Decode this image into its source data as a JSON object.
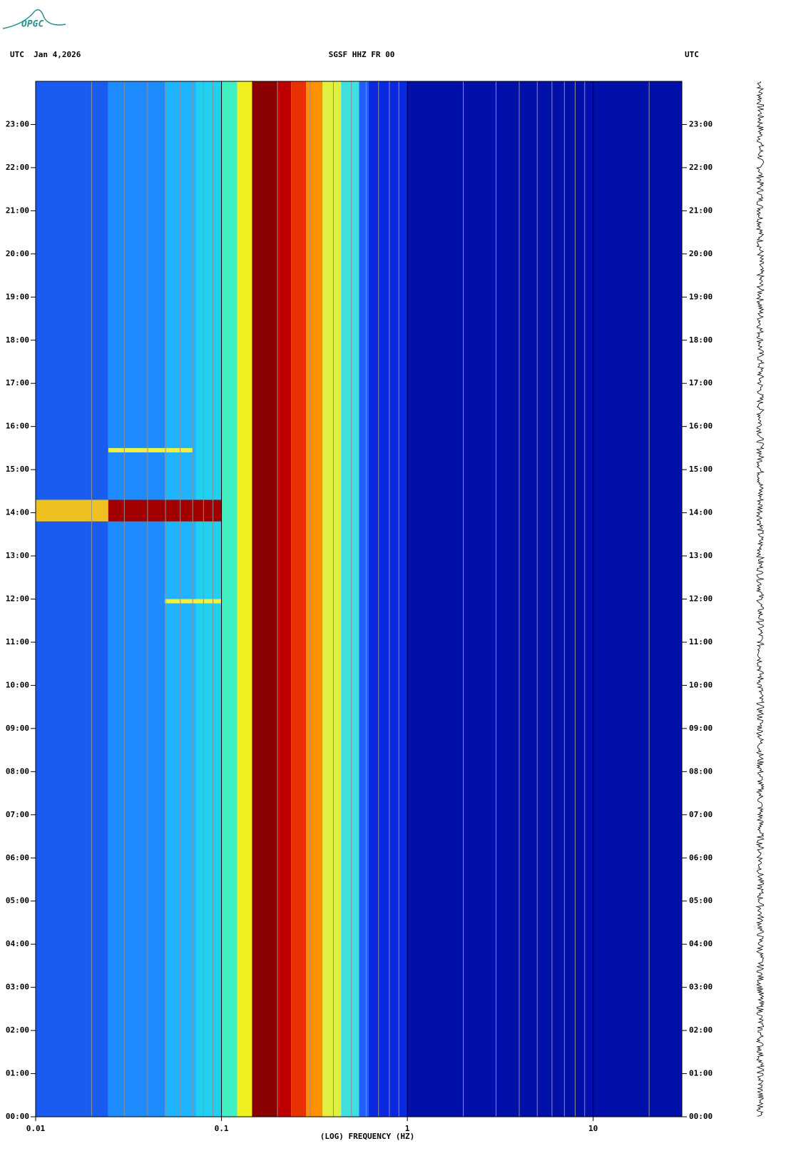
{
  "logo": "OPGC",
  "chart_data": {
    "type": "spectrogram",
    "title": "SGSF HHZ FR 00",
    "left_header": "UTC  Jan 4,2026",
    "right_header": "UTC",
    "x_label": "(LOG) FREQUENCY (HZ)",
    "log_x": true,
    "xlim": [
      0.01,
      30
    ],
    "xticks": [
      0.01,
      0.1,
      1,
      10
    ],
    "xminorticks": [
      0.02,
      0.03,
      0.04,
      0.05,
      0.06,
      0.07,
      0.08,
      0.09,
      0.2,
      0.3,
      0.4,
      0.5,
      0.6,
      0.7,
      0.8,
      0.9,
      2,
      3,
      4,
      5,
      6,
      7,
      8,
      9,
      20
    ],
    "ylim": [
      0,
      24
    ],
    "yticks": [
      {
        "value": 0,
        "label": "00:00"
      },
      {
        "value": 1,
        "label": "01:00"
      },
      {
        "value": 2,
        "label": "02:00"
      },
      {
        "value": 3,
        "label": "03:00"
      },
      {
        "value": 4,
        "label": "04:00"
      },
      {
        "value": 5,
        "label": "05:00"
      },
      {
        "value": 6,
        "label": "06:00"
      },
      {
        "value": 7,
        "label": "07:00"
      },
      {
        "value": 8,
        "label": "08:00"
      },
      {
        "value": 9,
        "label": "09:00"
      },
      {
        "value": 10,
        "label": "10:00"
      },
      {
        "value": 11,
        "label": "11:00"
      },
      {
        "value": 12,
        "label": "12:00"
      },
      {
        "value": 13,
        "label": "13:00"
      },
      {
        "value": 14,
        "label": "14:00"
      },
      {
        "value": 15,
        "label": "15:00"
      },
      {
        "value": 16,
        "label": "16:00"
      },
      {
        "value": 17,
        "label": "17:00"
      },
      {
        "value": 18,
        "label": "18:00"
      },
      {
        "value": 19,
        "label": "19:00"
      },
      {
        "value": 20,
        "label": "20:00"
      },
      {
        "value": 21,
        "label": "21:00"
      },
      {
        "value": 22,
        "label": "22:00"
      },
      {
        "value": 23,
        "label": "23:00"
      }
    ],
    "bands": [
      {
        "from": 0.01,
        "to": 0.0246,
        "color": "#1a5cf0"
      },
      {
        "from": 0.0246,
        "to": 0.0495,
        "color": "#1e8cff"
      },
      {
        "from": 0.0495,
        "to": 0.073,
        "color": "#1eb4ff"
      },
      {
        "from": 0.073,
        "to": 0.1,
        "color": "#20d0f0"
      },
      {
        "from": 0.1,
        "to": 0.1215,
        "color": "#40f0c0"
      },
      {
        "from": 0.1215,
        "to": 0.146,
        "color": "#f0f020"
      },
      {
        "from": 0.146,
        "to": 0.2,
        "color": "#8b0000"
      },
      {
        "from": 0.2,
        "to": 0.237,
        "color": "#c00000"
      },
      {
        "from": 0.237,
        "to": 0.285,
        "color": "#e83000"
      },
      {
        "from": 0.285,
        "to": 0.35,
        "color": "#ff9000"
      },
      {
        "from": 0.35,
        "to": 0.44,
        "color": "#e0f040"
      },
      {
        "from": 0.44,
        "to": 0.55,
        "color": "#40e0e0"
      },
      {
        "from": 0.55,
        "to": 0.62,
        "color": "#2060ff"
      },
      {
        "from": 0.62,
        "to": 1,
        "color": "#0a28e0"
      },
      {
        "from": 1,
        "to": 30,
        "color": "#0010a8"
      }
    ],
    "events": [
      {
        "from": 0.01,
        "to": 0.0246,
        "start": 13.8,
        "end": 14.3,
        "color": "#f0c020"
      },
      {
        "from": 0.0246,
        "to": 0.1,
        "start": 13.8,
        "end": 14.3,
        "color": "#a00000"
      },
      {
        "from": 0.0246,
        "to": 0.07,
        "start": 15.4,
        "end": 15.5,
        "color": "#f0f040"
      },
      {
        "from": 0.0495,
        "to": 0.1,
        "start": 11.9,
        "end": 12.0,
        "color": "#f0f040"
      }
    ]
  }
}
